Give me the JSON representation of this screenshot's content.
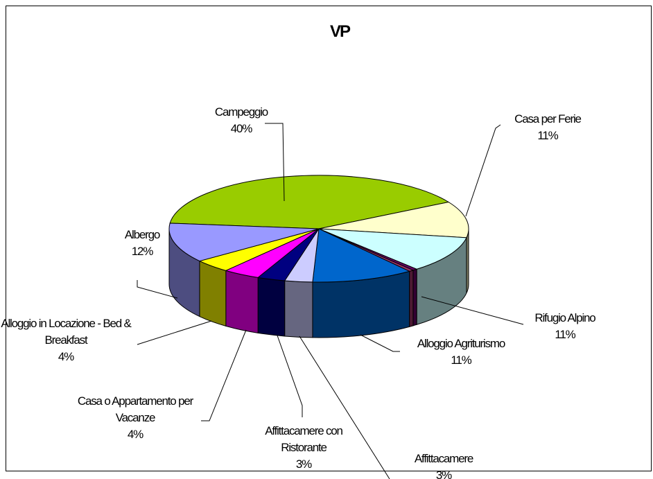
{
  "chart_data": {
    "type": "pie",
    "title": "VP",
    "categories": [
      "Campeggio",
      "Casa per Ferie",
      "Rifugio Alpino",
      null,
      null,
      "Alloggio Agriturismo",
      "Affittacamere",
      "Affittacamere con Ristorante",
      "Casa o Appartamento per Vacanze",
      "Alloggio in Locazione - Bed & Breakfast",
      "Albergo"
    ],
    "values": [
      40,
      11,
      11,
      0.5,
      0.5,
      11,
      3,
      3,
      4,
      4,
      12
    ],
    "value_labels": [
      "40%",
      "11%",
      "11%",
      null,
      null,
      "11%",
      "3%",
      "3%",
      "4%",
      "4%",
      "12%"
    ],
    "colors": [
      "#99cc00",
      "#ffffcc",
      "#ccffff",
      "#660066",
      "#993366",
      "#0066cc",
      "#ccccff",
      "#000080",
      "#ff00ff",
      "#ffff00",
      "#9999ff"
    ]
  }
}
